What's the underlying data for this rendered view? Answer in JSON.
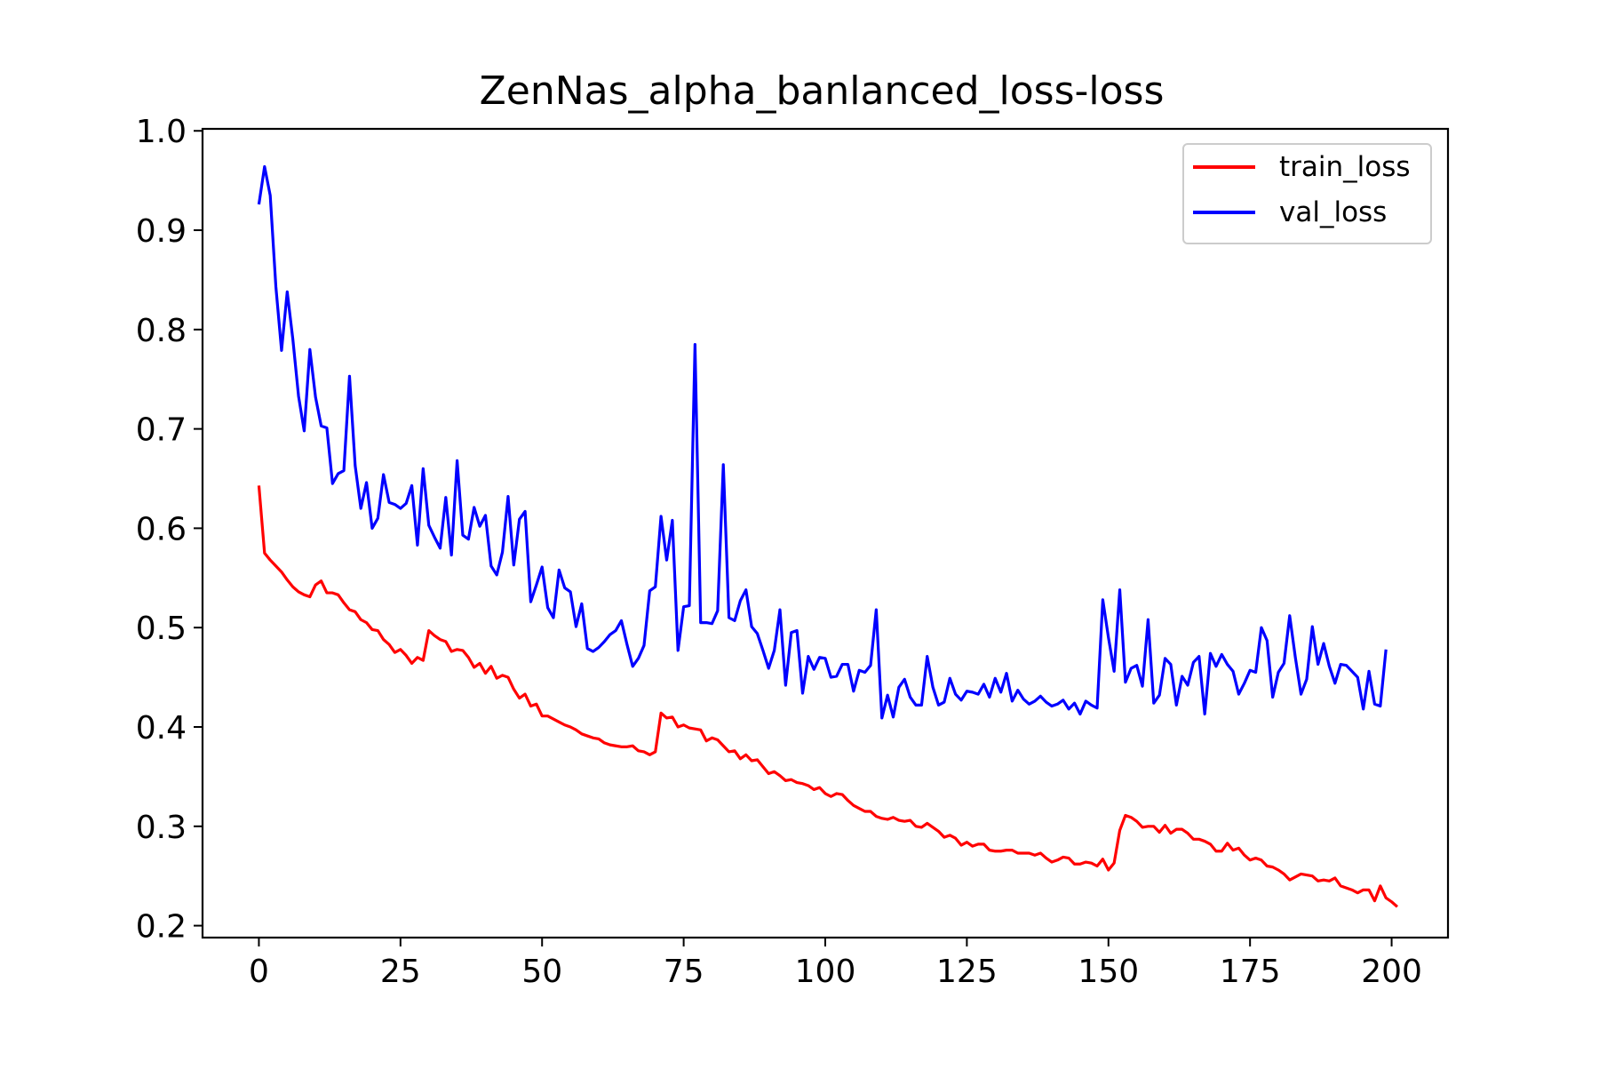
{
  "chart_data": {
    "type": "line",
    "title": "ZenNas_alpha_banlanced_loss-loss",
    "xlabel": "",
    "ylabel": "",
    "xlim": [
      -9.95,
      209.95
    ],
    "ylim": [
      0.188,
      1.002
    ],
    "xticks": [
      0,
      25,
      50,
      75,
      100,
      125,
      150,
      175,
      200
    ],
    "yticks": [
      0.2,
      0.3,
      0.4,
      0.5,
      0.6,
      0.7,
      0.8,
      0.9,
      1.0
    ],
    "xtick_labels": [
      "0",
      "25",
      "50",
      "75",
      "100",
      "125",
      "150",
      "175",
      "200"
    ],
    "ytick_labels": [
      "0.2",
      "0.3",
      "0.4",
      "0.5",
      "0.6",
      "0.7",
      "0.8",
      "0.9",
      "1.0"
    ],
    "grid": false,
    "legend_position": "top-right",
    "x_start": 0,
    "series": [
      {
        "name": "train_loss",
        "color": "#ff0000",
        "values": [
          0.643,
          0.575,
          0.568,
          0.562,
          0.556,
          0.548,
          0.541,
          0.536,
          0.533,
          0.531,
          0.543,
          0.547,
          0.535,
          0.535,
          0.533,
          0.525,
          0.518,
          0.516,
          0.508,
          0.505,
          0.498,
          0.497,
          0.488,
          0.483,
          0.475,
          0.478,
          0.472,
          0.464,
          0.47,
          0.467,
          0.497,
          0.492,
          0.488,
          0.486,
          0.476,
          0.478,
          0.477,
          0.47,
          0.46,
          0.464,
          0.454,
          0.461,
          0.449,
          0.452,
          0.45,
          0.438,
          0.429,
          0.433,
          0.421,
          0.423,
          0.411,
          0.411,
          0.408,
          0.405,
          0.402,
          0.4,
          0.397,
          0.393,
          0.391,
          0.389,
          0.388,
          0.384,
          0.382,
          0.381,
          0.38,
          0.38,
          0.381,
          0.376,
          0.375,
          0.372,
          0.375,
          0.414,
          0.409,
          0.41,
          0.4,
          0.402,
          0.399,
          0.398,
          0.397,
          0.386,
          0.389,
          0.387,
          0.381,
          0.375,
          0.376,
          0.368,
          0.372,
          0.366,
          0.367,
          0.36,
          0.353,
          0.355,
          0.351,
          0.346,
          0.347,
          0.344,
          0.343,
          0.341,
          0.337,
          0.339,
          0.333,
          0.33,
          0.333,
          0.332,
          0.326,
          0.321,
          0.318,
          0.315,
          0.315,
          0.31,
          0.308,
          0.307,
          0.309,
          0.306,
          0.305,
          0.306,
          0.3,
          0.299,
          0.303,
          0.299,
          0.295,
          0.289,
          0.291,
          0.288,
          0.281,
          0.284,
          0.28,
          0.282,
          0.282,
          0.276,
          0.275,
          0.275,
          0.276,
          0.276,
          0.273,
          0.273,
          0.273,
          0.271,
          0.273,
          0.268,
          0.264,
          0.266,
          0.269,
          0.268,
          0.262,
          0.262,
          0.264,
          0.263,
          0.26,
          0.267,
          0.256,
          0.263,
          0.296,
          0.311,
          0.309,
          0.305,
          0.299,
          0.3,
          0.3,
          0.294,
          0.301,
          0.293,
          0.297,
          0.297,
          0.293,
          0.287,
          0.287,
          0.285,
          0.282,
          0.275,
          0.275,
          0.283,
          0.276,
          0.278,
          0.271,
          0.266,
          0.268,
          0.266,
          0.26,
          0.259,
          0.256,
          0.252,
          0.246,
          0.249,
          0.252,
          0.251,
          0.25,
          0.245,
          0.246,
          0.245,
          0.248,
          0.24,
          0.238,
          0.236,
          0.233,
          0.236,
          0.236,
          0.225,
          0.24,
          0.228,
          0.224,
          0.219
        ]
      },
      {
        "name": "val_loss",
        "color": "#0000ff",
        "values": [
          0.926,
          0.964,
          0.935,
          0.843,
          0.779,
          0.838,
          0.79,
          0.733,
          0.698,
          0.78,
          0.732,
          0.703,
          0.701,
          0.645,
          0.655,
          0.658,
          0.753,
          0.663,
          0.62,
          0.646,
          0.6,
          0.61,
          0.654,
          0.626,
          0.624,
          0.62,
          0.625,
          0.643,
          0.583,
          0.66,
          0.603,
          0.591,
          0.58,
          0.631,
          0.573,
          0.668,
          0.593,
          0.589,
          0.621,
          0.602,
          0.613,
          0.562,
          0.553,
          0.576,
          0.632,
          0.563,
          0.609,
          0.617,
          0.526,
          0.543,
          0.561,
          0.52,
          0.51,
          0.558,
          0.54,
          0.536,
          0.501,
          0.524,
          0.479,
          0.476,
          0.48,
          0.486,
          0.493,
          0.497,
          0.507,
          0.483,
          0.461,
          0.469,
          0.482,
          0.537,
          0.541,
          0.612,
          0.568,
          0.608,
          0.477,
          0.521,
          0.522,
          0.785,
          0.505,
          0.505,
          0.504,
          0.517,
          0.664,
          0.51,
          0.507,
          0.527,
          0.538,
          0.501,
          0.494,
          0.477,
          0.459,
          0.477,
          0.518,
          0.442,
          0.495,
          0.497,
          0.434,
          0.471,
          0.458,
          0.47,
          0.469,
          0.45,
          0.451,
          0.463,
          0.463,
          0.436,
          0.457,
          0.455,
          0.462,
          0.518,
          0.409,
          0.432,
          0.41,
          0.44,
          0.448,
          0.43,
          0.422,
          0.422,
          0.471,
          0.44,
          0.422,
          0.425,
          0.449,
          0.433,
          0.427,
          0.436,
          0.435,
          0.433,
          0.443,
          0.43,
          0.449,
          0.435,
          0.454,
          0.426,
          0.437,
          0.428,
          0.423,
          0.426,
          0.431,
          0.425,
          0.421,
          0.423,
          0.427,
          0.418,
          0.424,
          0.413,
          0.426,
          0.422,
          0.419,
          0.528,
          0.49,
          0.456,
          0.538,
          0.445,
          0.459,
          0.462,
          0.441,
          0.508,
          0.424,
          0.432,
          0.469,
          0.463,
          0.422,
          0.451,
          0.442,
          0.465,
          0.471,
          0.413,
          0.474,
          0.461,
          0.473,
          0.463,
          0.456,
          0.433,
          0.444,
          0.457,
          0.455,
          0.5,
          0.487,
          0.43,
          0.455,
          0.464,
          0.512,
          0.47,
          0.433,
          0.448,
          0.501,
          0.463,
          0.484,
          0.461,
          0.444,
          0.463,
          0.462,
          0.456,
          0.45,
          0.418,
          0.456,
          0.423,
          0.421,
          0.478
        ]
      }
    ]
  }
}
